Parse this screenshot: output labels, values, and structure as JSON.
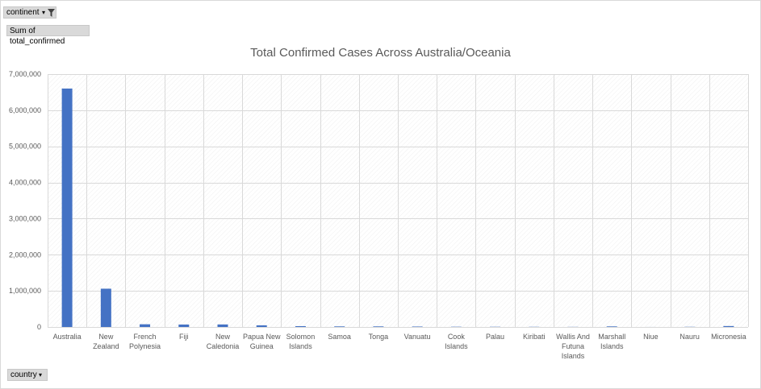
{
  "pivot_fields": {
    "continent_label": "continent",
    "sum_label": "Sum of total_confirmed",
    "country_label": "country"
  },
  "colors": {
    "bar": "#4472c4",
    "grid": "#d9d9d9"
  },
  "icons": {
    "filter": "filter-funnel-icon",
    "dropdown": "dropdown-arrow-icon"
  },
  "chart_data": {
    "type": "bar",
    "title": "Total Confirmed Cases Across Australia/Oceania",
    "xlabel": "",
    "ylabel": "",
    "ylim": [
      0,
      7000000
    ],
    "yticks": [
      "0",
      "1,000,000",
      "2,000,000",
      "3,000,000",
      "4,000,000",
      "5,000,000",
      "6,000,000",
      "7,000,000"
    ],
    "grid": true,
    "categories": [
      [
        "Australia"
      ],
      [
        "New",
        "Zealand"
      ],
      [
        "French",
        "Polynesia"
      ],
      [
        "Fiji"
      ],
      [
        "New",
        "Caledonia"
      ],
      [
        "Papua New",
        "Guinea"
      ],
      [
        "Solomon",
        "Islands"
      ],
      [
        "Samoa"
      ],
      [
        "Tonga"
      ],
      [
        "Vanuatu"
      ],
      [
        "Cook",
        "Islands"
      ],
      [
        "Palau"
      ],
      [
        "Kiribati"
      ],
      [
        "Wallis And",
        "Futuna",
        "Islands"
      ],
      [
        "Marshall",
        "Islands"
      ],
      [
        "Niue"
      ],
      [
        "Nauru"
      ],
      [
        "Micronesia"
      ]
    ],
    "values": [
      6600000,
      1060000,
      75000,
      68000,
      70000,
      46000,
      23000,
      16000,
      16000,
      12000,
      7000,
      6000,
      5000,
      3500,
      16000,
      800,
      5000,
      26000
    ]
  }
}
